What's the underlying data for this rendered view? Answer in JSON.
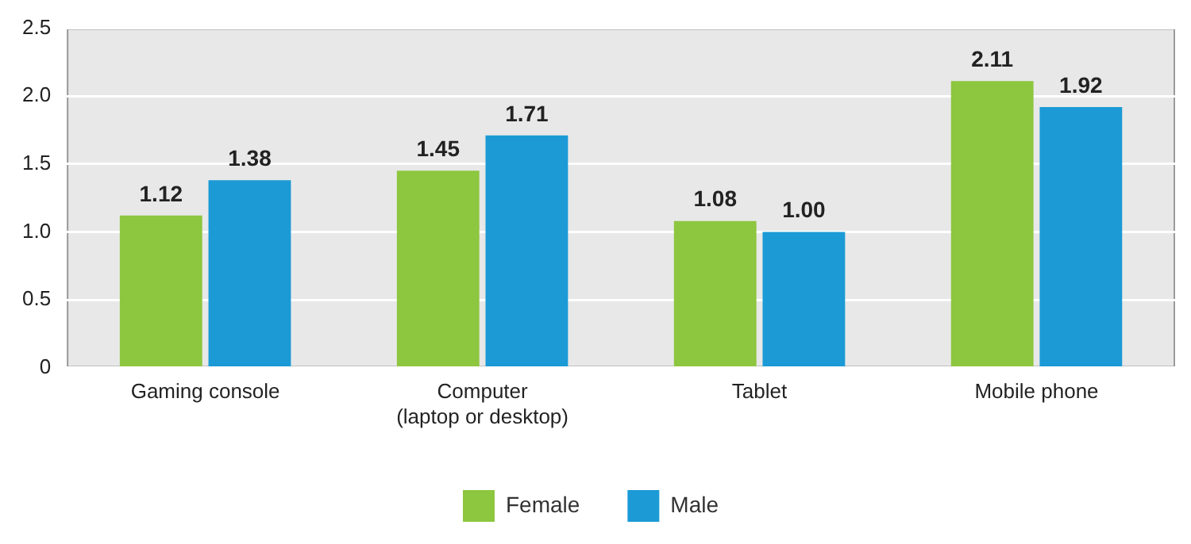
{
  "chart_data": {
    "type": "bar",
    "categories": [
      "Gaming console",
      "Computer\n(laptop or desktop)",
      "Tablet",
      "Mobile phone"
    ],
    "series": [
      {
        "name": "Female",
        "color": "#8dc63f",
        "values": [
          1.12,
          1.45,
          1.08,
          2.11
        ],
        "value_labels": [
          "1.12",
          "1.45",
          "1.08",
          "2.11"
        ]
      },
      {
        "name": "Male",
        "color": "#1b9ad6",
        "values": [
          1.38,
          1.71,
          1.0,
          1.92
        ],
        "value_labels": [
          "1.38",
          "1.71",
          "1.00",
          "1.92"
        ]
      }
    ],
    "ylim": [
      0,
      2.5
    ],
    "yticks": [
      0,
      0.5,
      {
        "value": 1,
        "label": "1.0"
      },
      1.5,
      {
        "value": 2,
        "label": "2.0"
      },
      2.5
    ],
    "grid": "y",
    "legend": "bottom"
  }
}
